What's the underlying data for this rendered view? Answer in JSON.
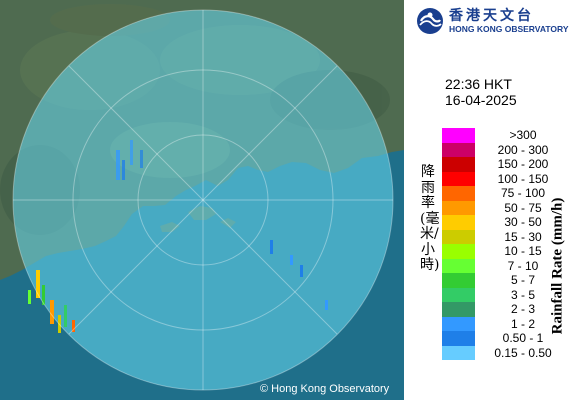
{
  "header": {
    "logo_zh": "香港天文台",
    "logo_en": "HONG KONG OBSERVATORY"
  },
  "info": {
    "time": "22:36 HKT",
    "date": "16-04-2025"
  },
  "legend": {
    "title_zh": "降雨率(毫米/小時)",
    "title_en": "Rainfall Rate (mm/h)",
    "items": [
      {
        "label": ">300",
        "color": "#ff00ff"
      },
      {
        "label": "200 - 300",
        "color": "#cc0066"
      },
      {
        "label": "150 - 200",
        "color": "#cc0000"
      },
      {
        "label": "100 - 150",
        "color": "#ff0000"
      },
      {
        "label": "75 - 100",
        "color": "#ff6600"
      },
      {
        "label": "50 - 75",
        "color": "#ff9900"
      },
      {
        "label": "30 - 50",
        "color": "#ffcc00"
      },
      {
        "label": "15 - 30",
        "color": "#cccc00"
      },
      {
        "label": "10 - 15",
        "color": "#99ff00"
      },
      {
        "label": "7 - 10",
        "color": "#66ff33"
      },
      {
        "label": "5 - 7",
        "color": "#33cc33"
      },
      {
        "label": "3 - 5",
        "color": "#33cc66"
      },
      {
        "label": "2 - 3",
        "color": "#339966"
      },
      {
        "label": "1 - 2",
        "color": "#3399ff"
      },
      {
        "label": "0.50 - 1",
        "color": "#1f7fe8"
      },
      {
        "label": "0.15 - 0.50",
        "color": "#66ccff"
      }
    ]
  },
  "map": {
    "copyright": "© Hong Kong Observatory",
    "land_color": "#4f6b50",
    "sea_color": "#1f6f8a",
    "radar_color": "#67dbf3"
  }
}
